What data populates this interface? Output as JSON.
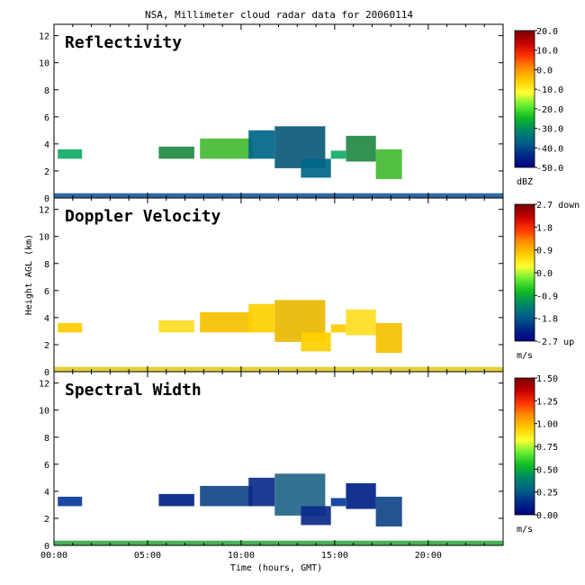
{
  "figure": {
    "title": "NSA, Millimeter cloud radar data for 20060114",
    "ylabel": "Height AGL (km)",
    "xlabel": "Time (hours, GMT)",
    "x_ticks": [
      "00:00",
      "05:00",
      "10:00",
      "15:00",
      "20:00"
    ]
  },
  "chart_data": [
    {
      "type": "heatmap",
      "title": "Reflectivity",
      "x_range_hours": [
        0,
        24
      ],
      "y_range_km": [
        0,
        12
      ],
      "y_ticks": [
        0,
        2,
        4,
        6,
        8,
        10,
        12
      ],
      "colorbar": {
        "labels": [
          "20.0",
          "10.0",
          "0.0",
          "-10.0",
          "-20.0",
          "-30.0",
          "-40.0",
          "-50.0"
        ],
        "unit": "dBZ",
        "range": [
          -50,
          20
        ]
      }
    },
    {
      "type": "heatmap",
      "title": "Doppler Velocity",
      "x_range_hours": [
        0,
        24
      ],
      "y_range_km": [
        0,
        12
      ],
      "y_ticks": [
        0,
        2,
        4,
        6,
        8,
        10,
        12
      ],
      "colorbar": {
        "labels": [
          "2.7 down",
          "1.8",
          "0.9",
          "0.0",
          "-0.9",
          "-1.8",
          "-2.7 up"
        ],
        "unit": "m/s",
        "range": [
          -2.7,
          2.7
        ]
      }
    },
    {
      "type": "heatmap",
      "title": "Spectral Width",
      "x_range_hours": [
        0,
        24
      ],
      "y_range_km": [
        0,
        12
      ],
      "y_ticks": [
        0,
        2,
        4,
        6,
        8,
        10,
        12
      ],
      "colorbar": {
        "labels": [
          "1.50",
          "1.25",
          "1.00",
          "0.75",
          "0.50",
          "0.25",
          "0.00"
        ],
        "unit": "m/s",
        "range": [
          0,
          1.5
        ]
      }
    }
  ],
  "echo_regions": [
    {
      "t0": 0.2,
      "t1": 1.5,
      "h0": 2.9,
      "h1": 3.6
    },
    {
      "t0": 5.6,
      "t1": 7.5,
      "h0": 2.9,
      "h1": 3.8
    },
    {
      "t0": 7.8,
      "t1": 10.6,
      "h0": 2.9,
      "h1": 4.4
    },
    {
      "t0": 10.4,
      "t1": 11.8,
      "h0": 2.9,
      "h1": 5.0
    },
    {
      "t0": 11.8,
      "t1": 14.5,
      "h0": 2.2,
      "h1": 5.3
    },
    {
      "t0": 14.8,
      "t1": 15.6,
      "h0": 2.9,
      "h1": 3.5
    },
    {
      "t0": 15.6,
      "t1": 17.2,
      "h0": 2.7,
      "h1": 4.6
    },
    {
      "t0": 17.2,
      "t1": 18.6,
      "h0": 1.4,
      "h1": 3.6
    },
    {
      "t0": 13.2,
      "t1": 14.8,
      "h0": 1.5,
      "h1": 2.9
    },
    {
      "t0": 0.0,
      "t1": 24.0,
      "h0": 0.0,
      "h1": 0.35
    }
  ]
}
